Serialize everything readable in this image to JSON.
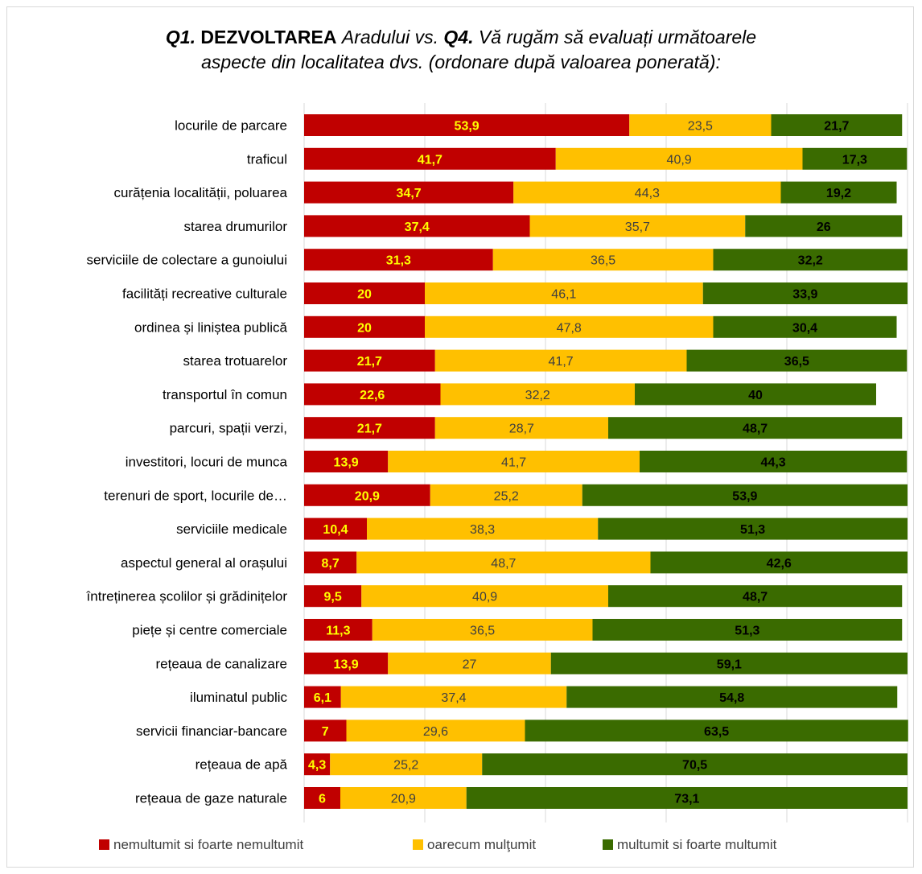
{
  "title": {
    "q1": "Q1.",
    "dezvoltarea": "DEZVOLTAREA",
    "aradului_vs": "Aradului vs.",
    "q4": "Q4.",
    "rest_line1": "Vă rugăm să evaluați următoarele",
    "line2": "aspecte din localitatea dvs. (ordonare după valoarea ponerată):"
  },
  "chart_data": {
    "type": "bar",
    "orientation": "horizontal",
    "stacked": true,
    "categories": [
      "locurile de parcare",
      "traficul",
      "curățenia localității, poluarea",
      "starea drumurilor",
      "serviciile de colectare a gunoiului",
      "facilități recreative culturale",
      "ordinea și liniștea publică",
      "starea trotuarelor",
      "transportul în comun",
      "parcuri, spații verzi,",
      "investitori, locuri de munca",
      "terenuri de sport, locurile de…",
      "serviciile medicale",
      "aspectul general al orașului",
      "întreținerea școlilor și grădinițelor",
      "piețe și centre comerciale",
      "rețeaua de canalizare",
      "iluminatul public",
      "servicii financiar-bancare",
      "rețeaua de apă",
      "rețeaua de gaze naturale"
    ],
    "series": [
      {
        "name": "nemultumit si foarte nemultumit",
        "color": "#c00000",
        "label_color": "#ffff00",
        "values": [
          53.9,
          41.7,
          34.7,
          37.4,
          31.3,
          20,
          20,
          21.7,
          22.6,
          21.7,
          13.9,
          20.9,
          10.4,
          8.7,
          9.5,
          11.3,
          13.9,
          6.1,
          7,
          4.3,
          6
        ],
        "labels": [
          "53,9",
          "41,7",
          "34,7",
          "37,4",
          "31,3",
          "20",
          "20",
          "21,7",
          "22,6",
          "21,7",
          "13,9",
          "20,9",
          "10,4",
          "8,7",
          "9,5",
          "11,3",
          "13,9",
          "6,1",
          "7",
          "4,3",
          "6"
        ]
      },
      {
        "name": "oarecum mulţumit",
        "color": "#ffc000",
        "label_color": "#404040",
        "values": [
          23.5,
          40.9,
          44.3,
          35.7,
          36.5,
          46.1,
          47.8,
          41.7,
          32.2,
          28.7,
          41.7,
          25.2,
          38.3,
          48.7,
          40.9,
          36.5,
          27,
          37.4,
          29.6,
          25.2,
          20.9
        ],
        "labels": [
          "23,5",
          "40,9",
          "44,3",
          "35,7",
          "36,5",
          "46,1",
          "47,8",
          "41,7",
          "32,2",
          "28,7",
          "41,7",
          "25,2",
          "38,3",
          "48,7",
          "40,9",
          "36,5",
          "27",
          "37,4",
          "29,6",
          "25,2",
          "20,9"
        ]
      },
      {
        "name": "multumit si foarte multumit",
        "color": "#3a6b00",
        "label_color": "#000000",
        "values": [
          21.7,
          17.3,
          19.2,
          26,
          32.2,
          33.9,
          30.4,
          36.5,
          40,
          48.7,
          44.3,
          53.9,
          51.3,
          42.6,
          48.7,
          51.3,
          59.1,
          54.8,
          63.5,
          70.5,
          73.1
        ],
        "labels": [
          "21,7",
          "17,3",
          "19,2",
          "26",
          "32,2",
          "33,9",
          "30,4",
          "36,5",
          "40",
          "48,7",
          "44,3",
          "53,9",
          "51,3",
          "42,6",
          "48,7",
          "51,3",
          "59,1",
          "54,8",
          "63,5",
          "70,5",
          "73,1"
        ]
      }
    ],
    "xlim": [
      0,
      100
    ],
    "grid": true,
    "legend_position": "bottom"
  }
}
